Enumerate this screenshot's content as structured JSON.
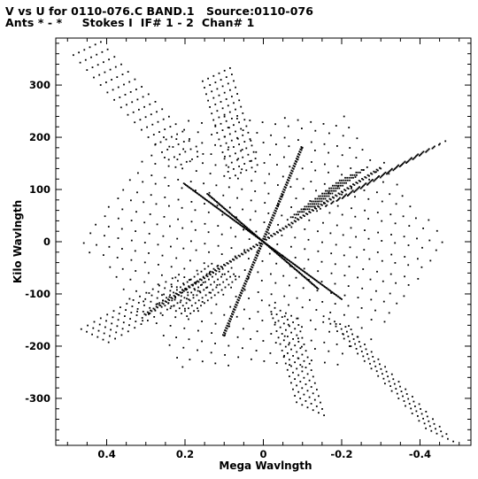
{
  "header": {
    "line1": "V vs U for 0110-076.C BAND.1   Source:0110-076",
    "line2": "Ants * - *     Stokes I  IF# 1 - 2  Chan# 1"
  },
  "chart_data": {
    "type": "scatter",
    "title": "V vs U for 0110-076.C BAND.1   Source:0110-076",
    "subtitle": "Ants * - *     Stokes I  IF# 1 - 2  Chan# 1",
    "xlabel": "Mega Wavlngth",
    "ylabel": "Kilo Wavlngth",
    "xlim": [
      0.53,
      -0.53
    ],
    "ylim": [
      -390,
      390
    ],
    "x_reversed": true,
    "x_ticks": [
      0.4,
      0.2,
      0,
      -0.2,
      -0.4
    ],
    "x_tick_labels": [
      "0.4",
      "0.2",
      "0",
      "-0.2",
      "-0.4"
    ],
    "y_ticks": [
      300,
      200,
      100,
      0,
      -100,
      -200,
      -300
    ],
    "y_tick_labels": [
      "300",
      "200",
      "100",
      "0",
      "-100",
      "-200",
      "-300"
    ],
    "grid": false,
    "legend": "none",
    "marker_color": "#000000",
    "hexagon_extent": {
      "u": 0.45,
      "v": 230
    },
    "arm_ends": [
      [
        0.12,
        320
      ],
      [
        -0.12,
        -320
      ],
      [
        0.45,
        370
      ],
      [
        -0.45,
        -370
      ],
      [
        0.43,
        -180
      ],
      [
        -0.43,
        180
      ],
      [
        -0.23,
        130
      ],
      [
        0.23,
        -130
      ]
    ],
    "spike_ends": [
      [
        -0.1,
        180
      ],
      [
        0.1,
        -180
      ],
      [
        0.2,
        110
      ],
      [
        -0.2,
        -110
      ],
      [
        -0.14,
        -90
      ],
      [
        0.14,
        90
      ],
      [
        -0.3,
        140
      ],
      [
        0.3,
        -140
      ]
    ]
  }
}
